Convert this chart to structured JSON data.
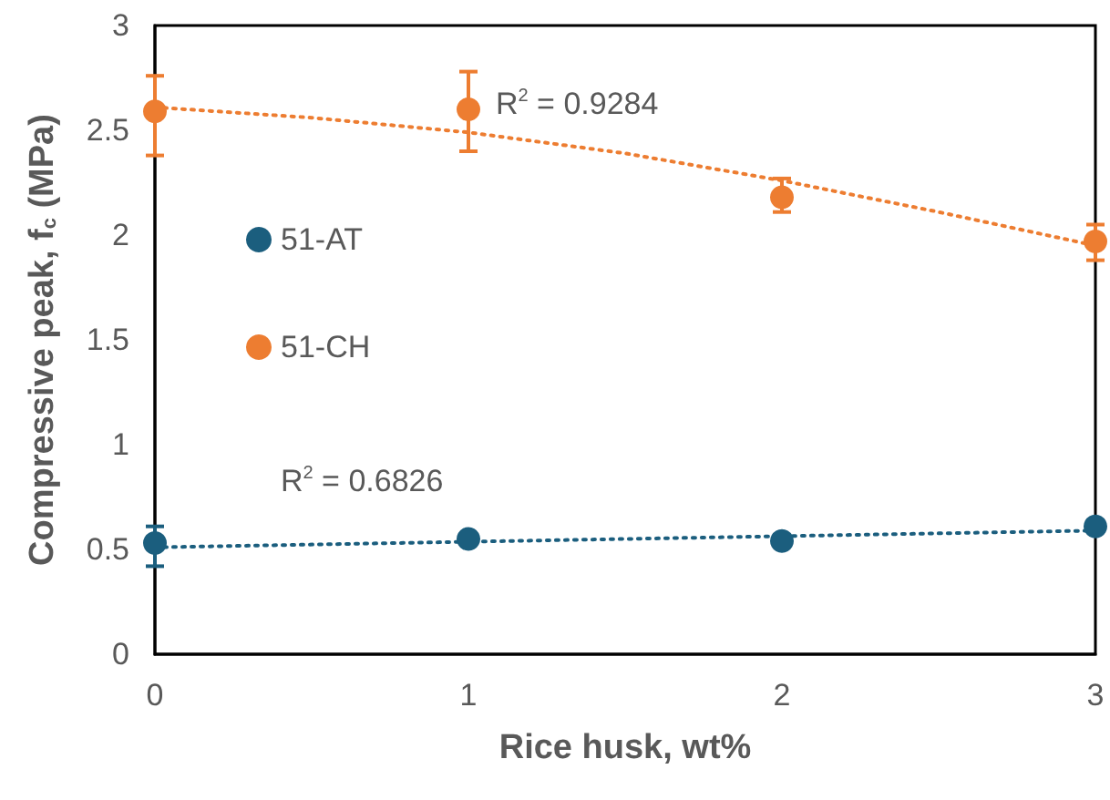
{
  "chart_data": {
    "type": "scatter",
    "xlabel": "Rice husk, wt%",
    "ylabel": "Compressive peak, f$_{c}$ (MPa)",
    "x": [
      0,
      1,
      2,
      3
    ],
    "series": [
      {
        "name": "51-AT",
        "color": "#1b5e7e",
        "values": [
          0.53,
          0.55,
          0.54,
          0.61
        ],
        "errors": [
          [
            0.42,
            0.61
          ],
          null,
          null,
          null
        ]
      },
      {
        "name": "51-CH",
        "color": "#ed7d31",
        "values": [
          2.59,
          2.6,
          2.18,
          1.97
        ],
        "errors": [
          [
            2.38,
            2.76
          ],
          [
            2.4,
            2.78
          ],
          [
            2.11,
            2.27
          ],
          [
            1.88,
            2.05
          ]
        ]
      },
      {
        "type": "line",
        "color": "#1b5e7e",
        "line_style": "dotted",
        "marker": "none",
        "x": [
          0,
          3
        ],
        "values": [
          0.51,
          0.59
        ]
      },
      {
        "type": "line",
        "color": "#ed7d31",
        "line_style": "dotted",
        "marker": "none",
        "x": [
          0,
          0.5,
          1,
          1.5,
          2,
          2.5,
          3
        ],
        "values": [
          2.61,
          2.56,
          2.49,
          2.39,
          2.26,
          2.11,
          1.95
        ]
      }
    ],
    "annotations": [
      "R$^{2}$ = 0.9284",
      "R$^{2}$ = 0.6826"
    ],
    "xlim": [
      0,
      3
    ],
    "xticks": [
      0,
      1,
      2,
      3
    ],
    "ylim": [
      0,
      3
    ],
    "yticks": [
      0,
      0.5,
      1,
      1.5,
      2,
      2.5,
      3
    ],
    "grid": false,
    "legend": "left",
    "marker": "circle"
  }
}
